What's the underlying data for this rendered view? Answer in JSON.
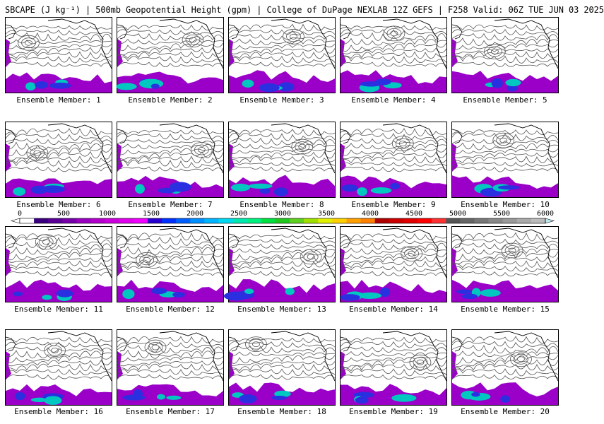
{
  "title": "SBCAPE (J kg⁻¹) | 500mb Geopotential Height (gpm) | College of DuPage NEXLAB 12Z GEFS | F258 Valid: 06Z TUE JUN 03 2025",
  "colorbar": {
    "tick_labels": [
      "0",
      "500",
      "1000",
      "1500",
      "2000",
      "2500",
      "3000",
      "3500",
      "4000",
      "4500",
      "5000",
      "5500",
      "6000"
    ],
    "colors": [
      "#ffffff",
      "#3b0080",
      "#5a0096",
      "#7800aa",
      "#9900c0",
      "#b300cc",
      "#cc00dd",
      "#e000ee",
      "#f000ff",
      "#2a00d0",
      "#0030ff",
      "#0060ff",
      "#0090ff",
      "#00b4ff",
      "#00d8f0",
      "#00e8b0",
      "#00f080",
      "#00e040",
      "#20c820",
      "#60d020",
      "#a0e000",
      "#e0f000",
      "#ffd000",
      "#ffa000",
      "#ff8000",
      "#b00000",
      "#cc0000",
      "#e00000",
      "#ff0000",
      "#ff3030",
      "#555555",
      "#666666",
      "#777777",
      "#888888",
      "#999999",
      "#aaaaaa",
      "#bbbbbb"
    ]
  },
  "panels": [
    {
      "label": "Ensemble Member: 1"
    },
    {
      "label": "Ensemble Member: 2"
    },
    {
      "label": "Ensemble Member: 3"
    },
    {
      "label": "Ensemble Member: 4"
    },
    {
      "label": "Ensemble Member: 5"
    },
    {
      "label": "Ensemble Member: 6"
    },
    {
      "label": "Ensemble Member: 7"
    },
    {
      "label": "Ensemble Member: 8"
    },
    {
      "label": "Ensemble Member: 9"
    },
    {
      "label": "Ensemble Member: 10"
    },
    {
      "label": "Ensemble Member: 11"
    },
    {
      "label": "Ensemble Member: 12"
    },
    {
      "label": "Ensemble Member: 13"
    },
    {
      "label": "Ensemble Member: 14"
    },
    {
      "label": "Ensemble Member: 15"
    },
    {
      "label": "Ensemble Member: 16"
    },
    {
      "label": "Ensemble Member: 17"
    },
    {
      "label": "Ensemble Member: 18"
    },
    {
      "label": "Ensemble Member: 19"
    },
    {
      "label": "Ensemble Member: 20"
    }
  ],
  "map": {
    "colors": {
      "cape_low": "#9a00c8",
      "cape_mid": "#2a30e0",
      "cape_high": "#00c8c0",
      "contour": "#555555",
      "coast": "#000000"
    }
  }
}
